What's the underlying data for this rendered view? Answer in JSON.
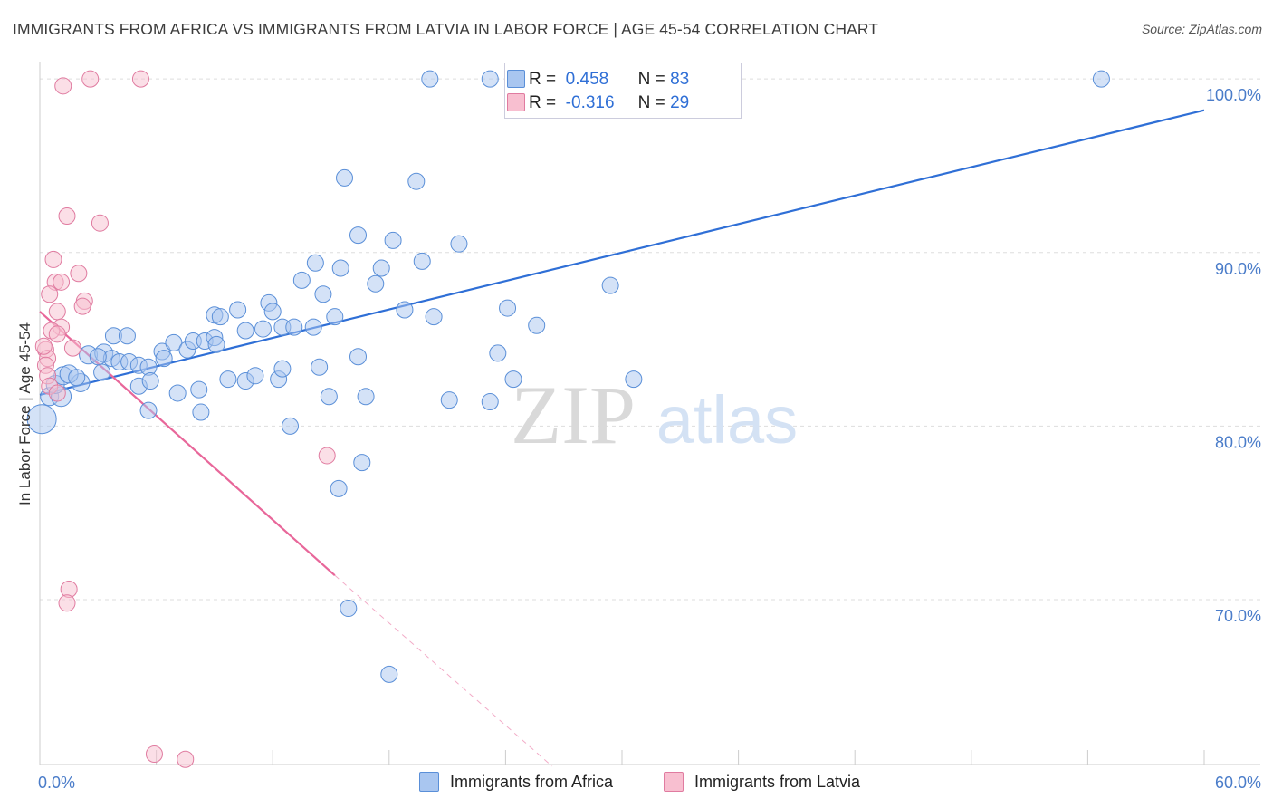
{
  "title": "IMMIGRANTS FROM AFRICA VS IMMIGRANTS FROM LATVIA IN LABOR FORCE | AGE 45-54 CORRELATION CHART",
  "source": "Source: ZipAtlas.com",
  "watermark_zip": "ZIP",
  "watermark_atlas": "atlas",
  "legend": {
    "r_label": "R =",
    "n_label": "N =",
    "series": [
      {
        "name": "Immigrants from Africa",
        "r": "0.458",
        "n": "83",
        "fill": "#a9c6f0",
        "stroke": "#5a8fd8"
      },
      {
        "name": "Immigrants from Latvia",
        "r": "-0.316",
        "n": "29",
        "fill": "#f8bfd0",
        "stroke": "#e07ba0"
      }
    ]
  },
  "colors": {
    "blue_line": "#2f6fd6",
    "pink_line": "#e8679a",
    "grid": "#dddddd",
    "tick_label": "#4a7cc9"
  },
  "chart_data": {
    "type": "scatter",
    "title": "IMMIGRANTS FROM AFRICA VS IMMIGRANTS FROM LATVIA IN LABOR FORCE | AGE 45-54 CORRELATION CHART",
    "xlabel": "",
    "ylabel": "In Labor Force | Age 45-54",
    "xlim": [
      0,
      60
    ],
    "ylim": [
      60.5,
      101
    ],
    "x_tick_labels": [
      {
        "value": 0,
        "label": "0.0%"
      },
      {
        "value": 60,
        "label": "60.0%"
      }
    ],
    "y_ticks": [
      {
        "value": 70,
        "label": "70.0%"
      },
      {
        "value": 80,
        "label": "80.0%"
      },
      {
        "value": 90,
        "label": "90.0%"
      },
      {
        "value": 100,
        "label": "100.0%"
      }
    ],
    "x_minor_ticks": [
      0,
      6,
      12,
      18,
      24,
      30,
      36,
      42,
      48,
      54,
      60
    ],
    "series": [
      {
        "name": "Immigrants from Africa",
        "trend": {
          "x": [
            0,
            60
          ],
          "y": [
            81.8,
            98.2
          ],
          "dashed_to": null
        },
        "points": [
          {
            "x": 0.1,
            "y": 80.4,
            "s": 16
          },
          {
            "x": 0.5,
            "y": 81.7,
            "s": 10
          },
          {
            "x": 1.1,
            "y": 81.7,
            "s": 11
          },
          {
            "x": 0.8,
            "y": 82.4,
            "s": 10
          },
          {
            "x": 1.2,
            "y": 82.9,
            "s": 10
          },
          {
            "x": 2.1,
            "y": 82.5,
            "s": 10
          },
          {
            "x": 1.5,
            "y": 83.0,
            "s": 10
          },
          {
            "x": 2.5,
            "y": 84.1,
            "s": 10
          },
          {
            "x": 3.3,
            "y": 84.2,
            "s": 10
          },
          {
            "x": 3.7,
            "y": 83.9,
            "s": 9
          },
          {
            "x": 4.1,
            "y": 83.7,
            "s": 9
          },
          {
            "x": 3.2,
            "y": 83.1,
            "s": 9
          },
          {
            "x": 3.8,
            "y": 85.2,
            "s": 9
          },
          {
            "x": 4.5,
            "y": 85.2,
            "s": 9
          },
          {
            "x": 4.6,
            "y": 83.7,
            "s": 9
          },
          {
            "x": 5.1,
            "y": 83.5,
            "s": 9
          },
          {
            "x": 5.6,
            "y": 83.4,
            "s": 9
          },
          {
            "x": 5.1,
            "y": 82.3,
            "s": 9
          },
          {
            "x": 5.7,
            "y": 82.6,
            "s": 9
          },
          {
            "x": 6.3,
            "y": 84.3,
            "s": 9
          },
          {
            "x": 6.4,
            "y": 83.9,
            "s": 9
          },
          {
            "x": 6.9,
            "y": 84.8,
            "s": 9
          },
          {
            "x": 7.1,
            "y": 81.9,
            "s": 9
          },
          {
            "x": 5.6,
            "y": 80.9,
            "s": 9
          },
          {
            "x": 7.6,
            "y": 84.4,
            "s": 9
          },
          {
            "x": 7.9,
            "y": 84.9,
            "s": 9
          },
          {
            "x": 8.2,
            "y": 82.1,
            "s": 9
          },
          {
            "x": 8.3,
            "y": 80.8,
            "s": 9
          },
          {
            "x": 8.5,
            "y": 84.9,
            "s": 9
          },
          {
            "x": 9.0,
            "y": 86.4,
            "s": 9
          },
          {
            "x": 9.3,
            "y": 86.3,
            "s": 9
          },
          {
            "x": 9.0,
            "y": 85.1,
            "s": 9
          },
          {
            "x": 9.1,
            "y": 84.7,
            "s": 9
          },
          {
            "x": 9.7,
            "y": 82.7,
            "s": 9
          },
          {
            "x": 10.6,
            "y": 82.6,
            "s": 9
          },
          {
            "x": 10.2,
            "y": 86.7,
            "s": 9
          },
          {
            "x": 10.6,
            "y": 85.5,
            "s": 9
          },
          {
            "x": 11.1,
            "y": 82.9,
            "s": 9
          },
          {
            "x": 11.5,
            "y": 85.6,
            "s": 9
          },
          {
            "x": 11.8,
            "y": 87.1,
            "s": 9
          },
          {
            "x": 12.0,
            "y": 86.6,
            "s": 9
          },
          {
            "x": 12.3,
            "y": 82.7,
            "s": 9
          },
          {
            "x": 12.5,
            "y": 83.3,
            "s": 9
          },
          {
            "x": 12.9,
            "y": 80.0,
            "s": 9
          },
          {
            "x": 12.5,
            "y": 85.7,
            "s": 9
          },
          {
            "x": 13.1,
            "y": 85.7,
            "s": 9
          },
          {
            "x": 13.5,
            "y": 88.4,
            "s": 9
          },
          {
            "x": 14.2,
            "y": 89.4,
            "s": 9
          },
          {
            "x": 14.1,
            "y": 85.7,
            "s": 9
          },
          {
            "x": 14.4,
            "y": 83.4,
            "s": 9
          },
          {
            "x": 14.6,
            "y": 87.6,
            "s": 9
          },
          {
            "x": 14.9,
            "y": 81.7,
            "s": 9
          },
          {
            "x": 15.2,
            "y": 86.3,
            "s": 9
          },
          {
            "x": 15.4,
            "y": 76.4,
            "s": 9
          },
          {
            "x": 15.5,
            "y": 89.1,
            "s": 9
          },
          {
            "x": 15.7,
            "y": 94.3,
            "s": 9
          },
          {
            "x": 16.4,
            "y": 91.0,
            "s": 9
          },
          {
            "x": 16.4,
            "y": 84.0,
            "s": 9
          },
          {
            "x": 16.6,
            "y": 77.9,
            "s": 9
          },
          {
            "x": 16.8,
            "y": 81.7,
            "s": 9
          },
          {
            "x": 17.3,
            "y": 88.2,
            "s": 9
          },
          {
            "x": 17.6,
            "y": 89.1,
            "s": 9
          },
          {
            "x": 18.2,
            "y": 90.7,
            "s": 9
          },
          {
            "x": 18.0,
            "y": 65.7,
            "s": 9
          },
          {
            "x": 15.9,
            "y": 69.5,
            "s": 9
          },
          {
            "x": 18.8,
            "y": 86.7,
            "s": 9
          },
          {
            "x": 19.4,
            "y": 94.1,
            "s": 9
          },
          {
            "x": 19.7,
            "y": 89.5,
            "s": 9
          },
          {
            "x": 20.1,
            "y": 100.0,
            "s": 9
          },
          {
            "x": 20.3,
            "y": 86.3,
            "s": 9
          },
          {
            "x": 21.1,
            "y": 81.5,
            "s": 9
          },
          {
            "x": 21.6,
            "y": 90.5,
            "s": 9
          },
          {
            "x": 23.2,
            "y": 81.4,
            "s": 9
          },
          {
            "x": 23.6,
            "y": 84.2,
            "s": 9
          },
          {
            "x": 23.2,
            "y": 100.0,
            "s": 9
          },
          {
            "x": 24.1,
            "y": 86.8,
            "s": 9
          },
          {
            "x": 24.4,
            "y": 82.7,
            "s": 9
          },
          {
            "x": 25.6,
            "y": 85.8,
            "s": 9
          },
          {
            "x": 29.4,
            "y": 88.1,
            "s": 9
          },
          {
            "x": 30.6,
            "y": 82.7,
            "s": 9
          },
          {
            "x": 54.7,
            "y": 100.0,
            "s": 9
          },
          {
            "x": 3.0,
            "y": 84.0,
            "s": 9
          },
          {
            "x": 1.9,
            "y": 82.8,
            "s": 9
          }
        ]
      },
      {
        "name": "Immigrants from Latvia",
        "trend": {
          "x": [
            0,
            15.2
          ],
          "y": [
            86.6,
            71.4
          ],
          "dashed_to": {
            "x": 26.4,
            "y": 60.4
          }
        },
        "points": [
          {
            "x": 2.6,
            "y": 100.0,
            "s": 9
          },
          {
            "x": 5.2,
            "y": 100.0,
            "s": 9
          },
          {
            "x": 1.2,
            "y": 99.6,
            "s": 9
          },
          {
            "x": 1.4,
            "y": 92.1,
            "s": 9
          },
          {
            "x": 3.1,
            "y": 91.7,
            "s": 9
          },
          {
            "x": 0.7,
            "y": 89.6,
            "s": 9
          },
          {
            "x": 2.0,
            "y": 88.8,
            "s": 9
          },
          {
            "x": 0.8,
            "y": 88.3,
            "s": 9
          },
          {
            "x": 1.1,
            "y": 88.3,
            "s": 9
          },
          {
            "x": 0.5,
            "y": 87.6,
            "s": 9
          },
          {
            "x": 2.3,
            "y": 87.2,
            "s": 9
          },
          {
            "x": 2.2,
            "y": 86.9,
            "s": 9
          },
          {
            "x": 0.9,
            "y": 86.6,
            "s": 9
          },
          {
            "x": 1.1,
            "y": 85.7,
            "s": 9
          },
          {
            "x": 0.6,
            "y": 85.5,
            "s": 9
          },
          {
            "x": 0.9,
            "y": 85.3,
            "s": 9
          },
          {
            "x": 0.3,
            "y": 84.4,
            "s": 9
          },
          {
            "x": 1.7,
            "y": 84.5,
            "s": 9
          },
          {
            "x": 0.4,
            "y": 83.9,
            "s": 9
          },
          {
            "x": 0.3,
            "y": 83.5,
            "s": 9
          },
          {
            "x": 0.4,
            "y": 82.9,
            "s": 9
          },
          {
            "x": 0.5,
            "y": 82.3,
            "s": 9
          },
          {
            "x": 0.9,
            "y": 81.9,
            "s": 9
          },
          {
            "x": 14.8,
            "y": 78.3,
            "s": 9
          },
          {
            "x": 1.5,
            "y": 70.6,
            "s": 9
          },
          {
            "x": 1.4,
            "y": 69.8,
            "s": 9
          },
          {
            "x": 5.9,
            "y": 61.1,
            "s": 9
          },
          {
            "x": 7.5,
            "y": 60.8,
            "s": 9
          },
          {
            "x": 0.2,
            "y": 84.6,
            "s": 9
          }
        ]
      }
    ]
  }
}
